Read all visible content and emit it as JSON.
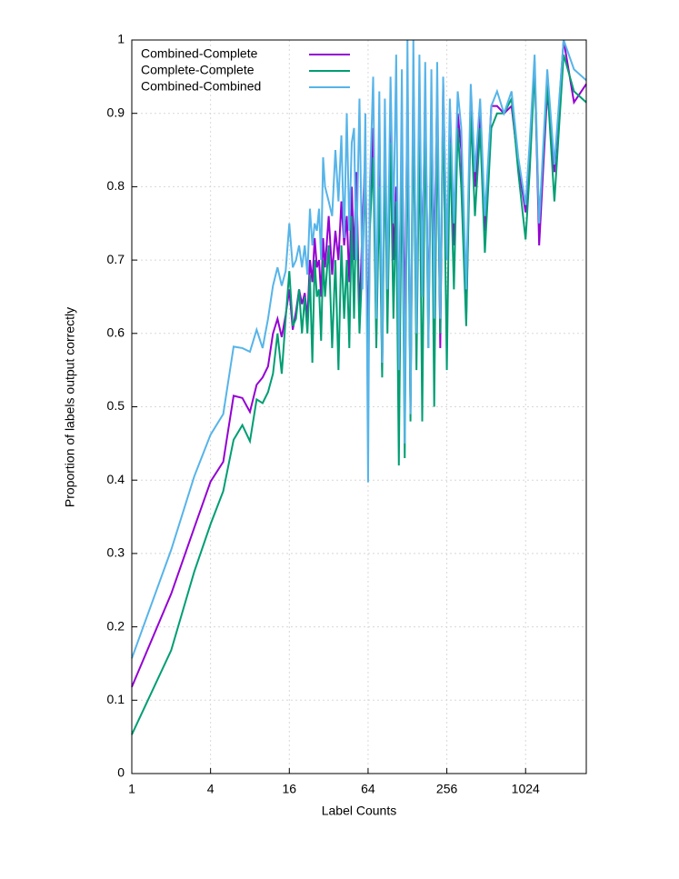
{
  "chart_data": {
    "type": "line",
    "xlabel": "Label Counts",
    "ylabel": "Proportion of labels output correctly",
    "xscale": "log2",
    "grid": true,
    "legend": "top-left",
    "xlim": [
      1,
      2980
    ],
    "ylim": [
      0,
      1
    ],
    "xticks": [
      1,
      4,
      16,
      64,
      256,
      1024
    ],
    "yticks": [
      0,
      0.1,
      0.2,
      0.3,
      0.4,
      0.5,
      0.6,
      0.7,
      0.8,
      0.9,
      1
    ],
    "x": [
      1,
      2,
      3,
      4,
      5,
      6,
      7,
      8,
      9,
      10,
      11,
      12,
      13,
      14,
      15,
      16,
      17,
      18,
      19,
      20,
      21,
      22,
      23,
      24,
      25,
      26,
      27,
      28,
      29,
      30,
      32,
      34,
      36,
      38,
      40,
      42,
      44,
      46,
      48,
      50,
      52,
      55,
      58,
      61,
      64,
      66,
      70,
      74,
      78,
      82,
      86,
      90,
      95,
      100,
      105,
      110,
      116,
      122,
      128,
      135,
      142,
      150,
      158,
      166,
      175,
      185,
      195,
      205,
      216,
      228,
      240,
      256,
      270,
      290,
      310,
      330,
      360,
      390,
      420,
      460,
      500,
      560,
      620,
      700,
      800,
      900,
      1024,
      1100,
      1200,
      1300,
      1500,
      1700,
      2000,
      2400,
      2980
    ],
    "series": [
      {
        "name": "Combined-Complete",
        "color": "#9400d3",
        "values": [
          0.118,
          0.245,
          0.335,
          0.398,
          0.425,
          0.515,
          0.512,
          0.493,
          0.53,
          0.54,
          0.555,
          0.6,
          0.62,
          0.595,
          0.625,
          0.66,
          0.605,
          0.63,
          0.66,
          0.64,
          0.655,
          0.62,
          0.7,
          0.67,
          0.73,
          0.69,
          0.7,
          0.65,
          0.73,
          0.69,
          0.76,
          0.68,
          0.74,
          0.7,
          0.78,
          0.72,
          0.76,
          0.67,
          0.8,
          0.7,
          0.82,
          0.62,
          0.75,
          0.85,
          0.55,
          0.78,
          0.88,
          0.6,
          0.84,
          0.55,
          0.88,
          0.65,
          0.9,
          0.7,
          0.8,
          0.62,
          0.88,
          0.6,
          0.92,
          0.5,
          0.95,
          0.62,
          0.9,
          0.7,
          0.92,
          0.62,
          0.9,
          0.7,
          0.93,
          0.58,
          0.94,
          0.7,
          0.88,
          0.72,
          0.9,
          0.85,
          0.62,
          0.92,
          0.8,
          0.9,
          0.74,
          0.91,
          0.91,
          0.9,
          0.91,
          0.83,
          0.765,
          0.85,
          0.97,
          0.72,
          0.93,
          0.82,
          1,
          0.915,
          0.94
        ]
      },
      {
        "name": "Complete-Complete",
        "color": "#009e73",
        "values": [
          0.053,
          0.168,
          0.275,
          0.34,
          0.385,
          0.455,
          0.475,
          0.453,
          0.51,
          0.505,
          0.52,
          0.545,
          0.6,
          0.545,
          0.62,
          0.685,
          0.61,
          0.62,
          0.66,
          0.6,
          0.65,
          0.6,
          0.68,
          0.56,
          0.7,
          0.65,
          0.66,
          0.59,
          0.7,
          0.65,
          0.72,
          0.58,
          0.7,
          0.55,
          0.72,
          0.62,
          0.7,
          0.58,
          0.76,
          0.62,
          0.78,
          0.6,
          0.7,
          0.82,
          0.5,
          0.74,
          0.84,
          0.58,
          0.8,
          0.54,
          0.85,
          0.6,
          0.86,
          0.62,
          0.78,
          0.42,
          0.86,
          0.43,
          0.9,
          0.48,
          0.92,
          0.55,
          0.88,
          0.48,
          0.9,
          0.58,
          0.88,
          0.5,
          0.9,
          0.6,
          0.92,
          0.55,
          0.86,
          0.66,
          0.88,
          0.8,
          0.61,
          0.9,
          0.76,
          0.88,
          0.71,
          0.88,
          0.9,
          0.9,
          0.92,
          0.82,
          0.728,
          0.82,
          0.96,
          0.75,
          0.94,
          0.78,
          0.98,
          0.93,
          0.915
        ]
      },
      {
        "name": "Combined-Combined",
        "color": "#56b4e9",
        "values": [
          0.157,
          0.305,
          0.405,
          0.462,
          0.49,
          0.582,
          0.58,
          0.575,
          0.605,
          0.58,
          0.62,
          0.665,
          0.69,
          0.665,
          0.685,
          0.75,
          0.69,
          0.7,
          0.72,
          0.69,
          0.72,
          0.68,
          0.77,
          0.72,
          0.75,
          0.74,
          0.77,
          0.7,
          0.84,
          0.8,
          0.78,
          0.76,
          0.85,
          0.78,
          0.87,
          0.73,
          0.9,
          0.74,
          0.86,
          0.88,
          0.7,
          0.92,
          0.66,
          0.9,
          0.397,
          0.8,
          0.95,
          0.62,
          0.93,
          0.56,
          0.92,
          0.66,
          0.95,
          0.75,
          0.98,
          0.55,
          0.96,
          0.45,
          1,
          0.49,
          1,
          0.6,
          0.98,
          0.65,
          0.97,
          0.58,
          0.96,
          0.62,
          0.97,
          0.62,
          0.95,
          0.7,
          0.92,
          0.75,
          0.93,
          0.88,
          0.66,
          0.94,
          0.82,
          0.92,
          0.76,
          0.91,
          0.93,
          0.9,
          0.93,
          0.84,
          0.775,
          0.86,
          0.98,
          0.75,
          0.96,
          0.83,
          1,
          0.96,
          0.945
        ]
      }
    ]
  }
}
